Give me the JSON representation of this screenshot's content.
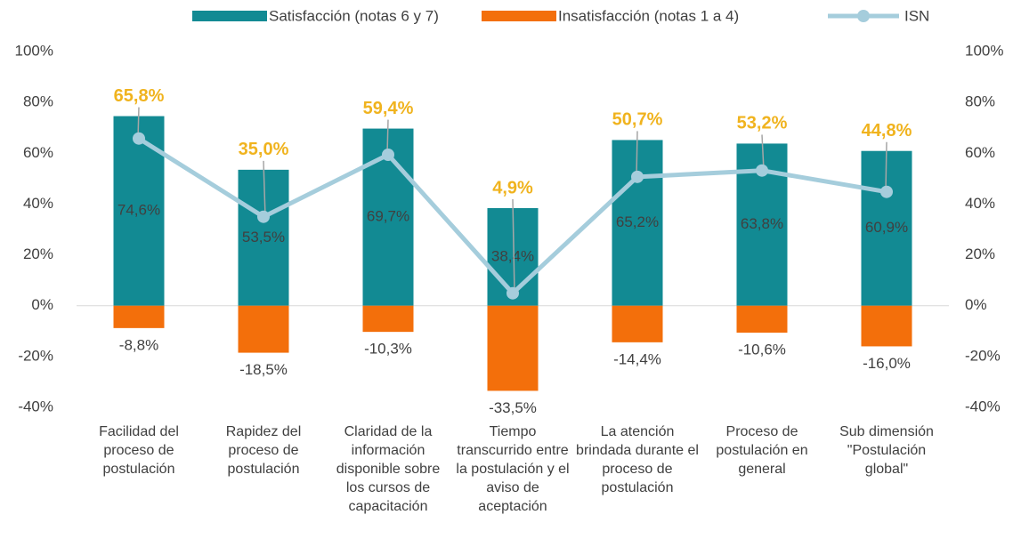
{
  "chart_data": {
    "type": "bar",
    "categories": [
      "Facilidad del proceso de postulación",
      "Rapidez del proceso de postulación",
      "Claridad de la información disponible sobre los cursos de capacitación",
      "Tiempo transcurrido entre la postulación y el aviso de aceptación",
      "La atención brindada durante el proceso de postulación",
      "Proceso de postulación en general",
      "Sub dimensión \"Postulación global\""
    ],
    "series": [
      {
        "name": "Satisfacción (notas 6 y 7)",
        "type": "bar",
        "color": "#128a93",
        "values": [
          74.6,
          53.5,
          69.7,
          38.4,
          65.2,
          63.8,
          60.9
        ],
        "value_labels": [
          "74,6%",
          "53,5%",
          "69,7%",
          "38,4%",
          "65,2%",
          "63,8%",
          "60,9%"
        ]
      },
      {
        "name": "Insatisfacción (notas 1 a 4)",
        "type": "bar",
        "color": "#f36f0b",
        "values": [
          -8.8,
          -18.5,
          -10.3,
          -33.5,
          -14.4,
          -10.6,
          -16.0
        ],
        "value_labels": [
          "-8,8%",
          "-18,5%",
          "-10,3%",
          "-33,5%",
          "-14,4%",
          "-10,6%",
          "-16,0%"
        ]
      },
      {
        "name": "ISN",
        "type": "line",
        "axis": "y2",
        "color": "#a5cddc",
        "label_color": "#f0b31e",
        "values": [
          65.8,
          35.0,
          59.4,
          4.9,
          50.7,
          53.2,
          44.8
        ],
        "value_labels": [
          "65,8%",
          "35,0%",
          "59,4%",
          "4,9%",
          "50,7%",
          "53,2%",
          "44,8%"
        ]
      }
    ],
    "ylim": [
      -40,
      100
    ],
    "yticks": [
      {
        "value": -40,
        "label": "-40%"
      },
      {
        "value": -20,
        "label": "-20%"
      },
      {
        "value": 0,
        "label": "0%"
      },
      {
        "value": 20,
        "label": "20%"
      },
      {
        "value": 40,
        "label": "40%"
      },
      {
        "value": 60,
        "label": "60%"
      },
      {
        "value": 80,
        "label": "80%"
      },
      {
        "value": 100,
        "label": "100%"
      }
    ],
    "y2lim": [
      -40,
      100
    ],
    "y2ticks": [
      {
        "value": -40,
        "label": "-40%"
      },
      {
        "value": -20,
        "label": "-20%"
      },
      {
        "value": 0,
        "label": "0%"
      },
      {
        "value": 20,
        "label": "20%"
      },
      {
        "value": 40,
        "label": "40%"
      },
      {
        "value": 60,
        "label": "60%"
      },
      {
        "value": 80,
        "label": "80%"
      },
      {
        "value": 100,
        "label": "100%"
      }
    ],
    "legend": "top",
    "grid": false
  }
}
